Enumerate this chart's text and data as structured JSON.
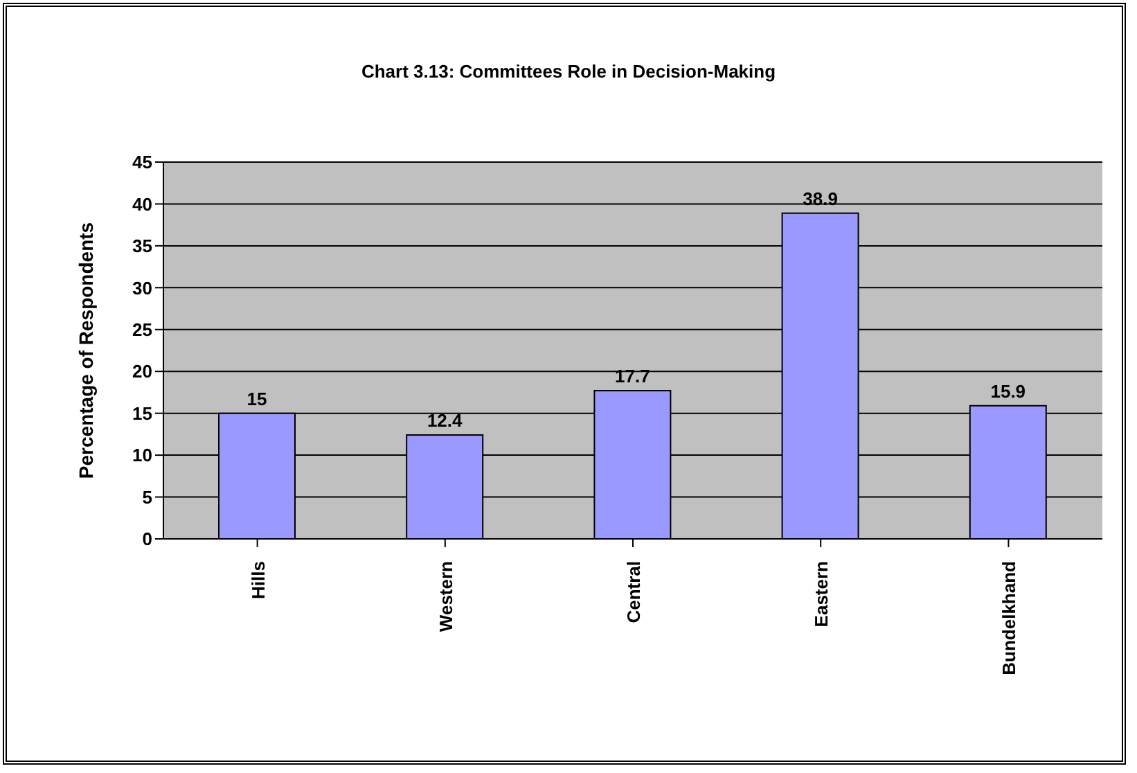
{
  "chart_data": {
    "type": "bar",
    "title": "Chart 3.13: Committees Role in Decision-Making",
    "ylabel": "Percentage of Respondents",
    "categories": [
      "Hills",
      "Western",
      "Central",
      "Eastern",
      "Bundelkhand"
    ],
    "values": [
      15,
      12.4,
      17.7,
      38.9,
      15.9
    ],
    "color": "#9999ff",
    "ylim": [
      0,
      45
    ],
    "yticks": [
      0,
      5,
      10,
      15,
      20,
      25,
      30,
      35,
      40,
      45
    ],
    "grid": "y",
    "data_labels": true
  }
}
